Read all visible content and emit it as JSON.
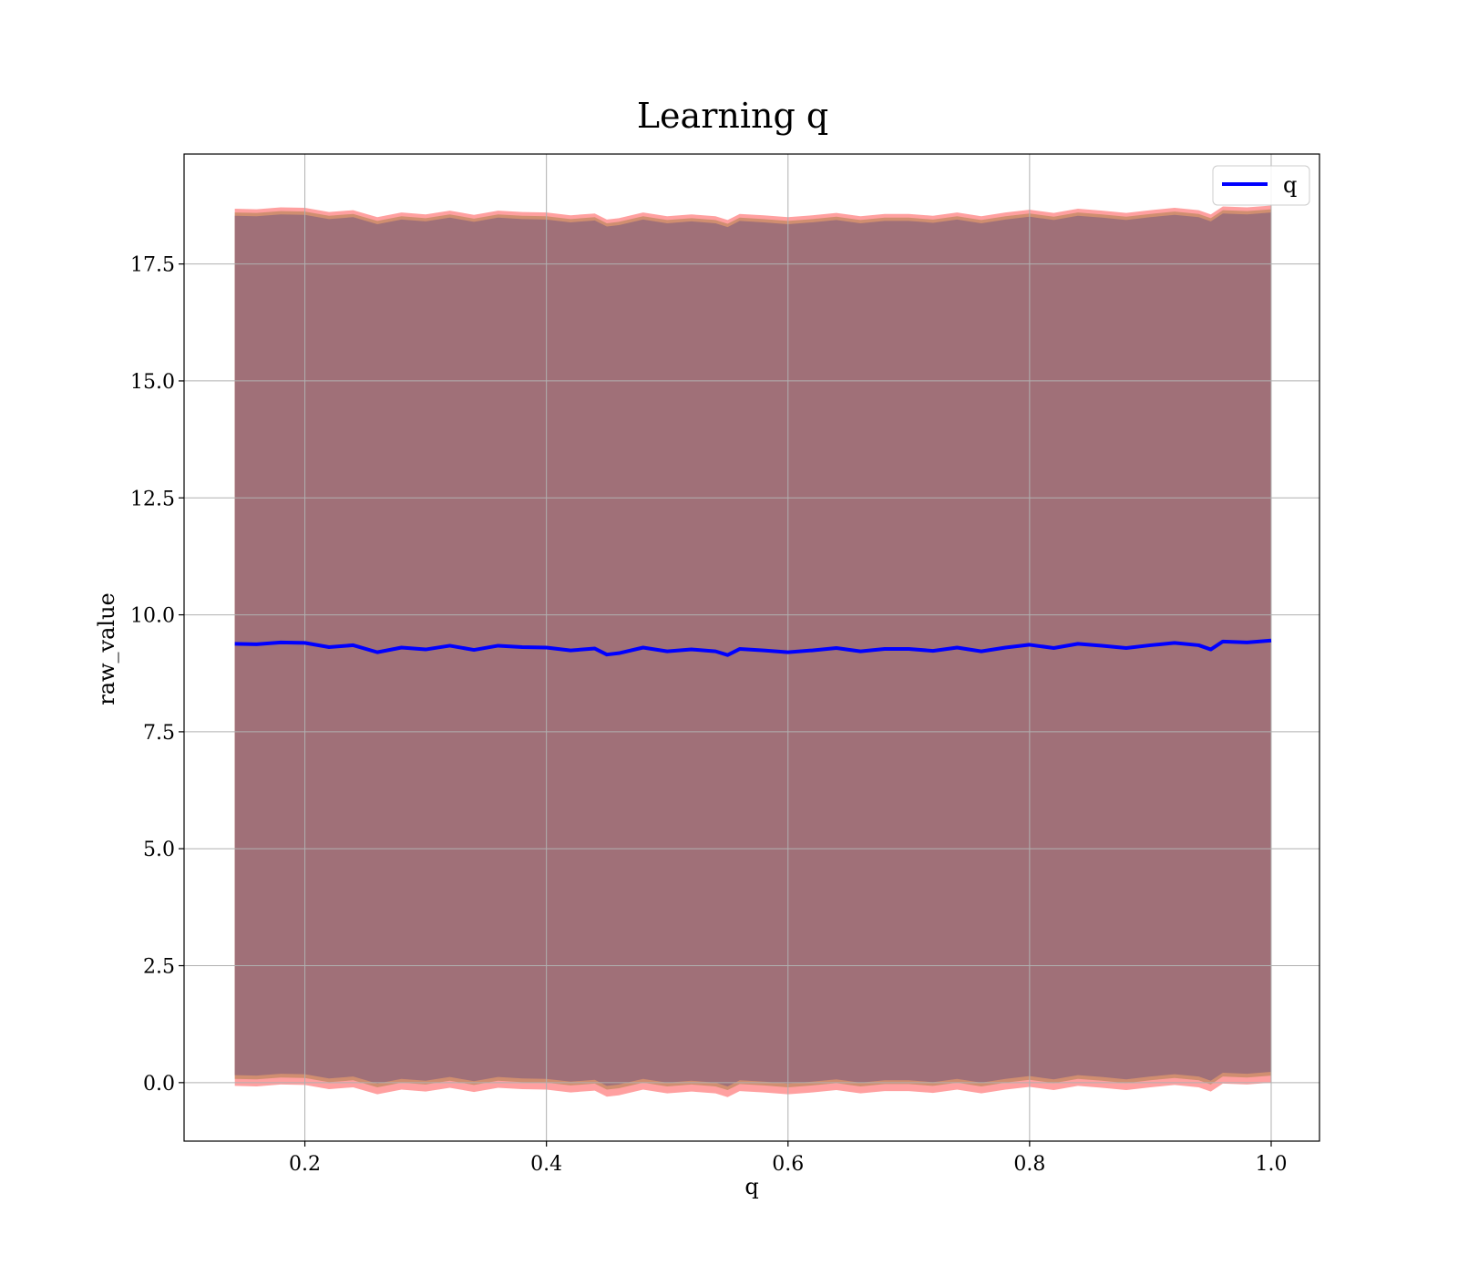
{
  "chart_data": {
    "type": "line",
    "title": "Learning q",
    "xlabel": "q",
    "ylabel": "raw_value",
    "xlim": [
      0.1,
      1.04
    ],
    "ylim": [
      -1.25,
      19.85
    ],
    "xticks": [
      {
        "value": 0.2,
        "label": "0.2"
      },
      {
        "value": 0.4,
        "label": "0.4"
      },
      {
        "value": 0.6,
        "label": "0.6"
      },
      {
        "value": 0.8,
        "label": "0.8"
      },
      {
        "value": 1.0,
        "label": "1.0"
      }
    ],
    "yticks": [
      {
        "value": 0.0,
        "label": "0.0"
      },
      {
        "value": 2.5,
        "label": "2.5"
      },
      {
        "value": 5.0,
        "label": "5.0"
      },
      {
        "value": 7.5,
        "label": "7.5"
      },
      {
        "value": 10.0,
        "label": "10.0"
      },
      {
        "value": 12.5,
        "label": "12.5"
      },
      {
        "value": 15.0,
        "label": "15.0"
      },
      {
        "value": 17.5,
        "label": "17.5"
      }
    ],
    "grid": true,
    "legend_position": "top-right",
    "series": [
      {
        "name": "q",
        "color": "#0000ff",
        "x": [
          0.142,
          0.16,
          0.18,
          0.2,
          0.22,
          0.24,
          0.26,
          0.28,
          0.3,
          0.32,
          0.34,
          0.36,
          0.38,
          0.4,
          0.42,
          0.44,
          0.45,
          0.46,
          0.48,
          0.5,
          0.52,
          0.54,
          0.55,
          0.56,
          0.58,
          0.6,
          0.62,
          0.64,
          0.66,
          0.68,
          0.7,
          0.72,
          0.74,
          0.76,
          0.78,
          0.8,
          0.82,
          0.84,
          0.86,
          0.88,
          0.9,
          0.92,
          0.94,
          0.95,
          0.96,
          0.98,
          1.0
        ],
        "y": [
          9.38,
          9.37,
          9.41,
          9.4,
          9.31,
          9.35,
          9.2,
          9.3,
          9.26,
          9.34,
          9.25,
          9.34,
          9.31,
          9.3,
          9.24,
          9.28,
          9.15,
          9.18,
          9.3,
          9.22,
          9.26,
          9.22,
          9.14,
          9.27,
          9.24,
          9.2,
          9.24,
          9.29,
          9.22,
          9.27,
          9.27,
          9.23,
          9.3,
          9.22,
          9.3,
          9.36,
          9.29,
          9.38,
          9.34,
          9.29,
          9.35,
          9.4,
          9.35,
          9.26,
          9.43,
          9.41,
          9.45
        ]
      }
    ],
    "bands": [
      {
        "color": "#ff8080",
        "lower_offset": -9.45,
        "upper_offset": 9.3
      },
      {
        "color": "#c08860",
        "lower_offset": -9.3,
        "upper_offset": 9.22
      },
      {
        "color": "#a07078",
        "lower_offset": -9.22,
        "upper_offset": 9.15
      }
    ]
  }
}
